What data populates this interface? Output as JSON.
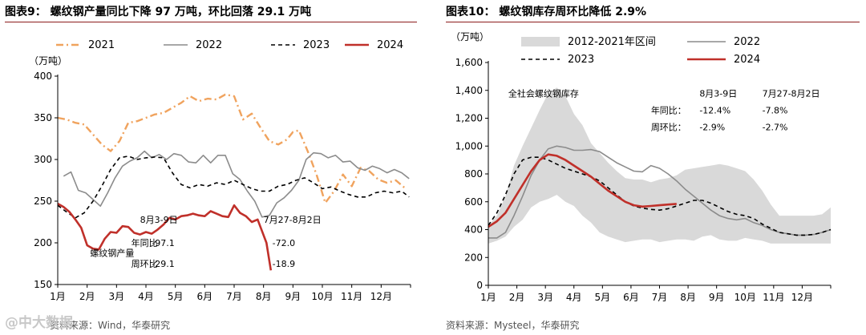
{
  "watermark": "@中大数据",
  "chart_data": [
    {
      "type": "line",
      "title": "图表9：  螺纹钢产量同比下降 97 万吨，环比回落 29.1 万吨",
      "source": "资料来源：Wind，华泰研究",
      "ylabel": "（万吨）",
      "ylim": [
        150,
        400
      ],
      "yticks": [
        "150",
        "200",
        "250",
        "300",
        "350",
        "400"
      ],
      "ytick_values": [
        150,
        200,
        250,
        300,
        350,
        400
      ],
      "xlabels": [
        "1月",
        "2月",
        "3月",
        "4月",
        "5月",
        "6月",
        "7月",
        "8月",
        "9月",
        "10月",
        "11月",
        "12月"
      ],
      "x_domain": [
        1,
        13
      ],
      "series": [
        {
          "name": "2021",
          "style": "dashdot",
          "color": "#f0a35e",
          "x": [
            1,
            1.3,
            1.6,
            1.9,
            2.2,
            2.5,
            2.8,
            3.1,
            3.4,
            3.7,
            4.0,
            4.3,
            4.6,
            4.9,
            5.2,
            5.5,
            5.8,
            6.1,
            6.4,
            6.7,
            7.0,
            7.3,
            7.6,
            7.9,
            8.2,
            8.5,
            8.8,
            9.0,
            9.2,
            9.5,
            9.8,
            10.1,
            10.4,
            10.7,
            11.0,
            11.3,
            11.6,
            11.9,
            12.2,
            12.5,
            12.8
          ],
          "y": [
            350,
            348,
            344,
            342,
            330,
            318,
            310,
            322,
            344,
            346,
            350,
            354,
            356,
            362,
            368,
            376,
            370,
            373,
            372,
            378,
            376,
            348,
            355,
            338,
            322,
            318,
            324,
            333,
            335,
            310,
            282,
            248,
            262,
            282,
            268,
            290,
            286,
            276,
            272,
            275,
            266
          ]
        },
        {
          "name": "2022",
          "style": "solid",
          "color": "#8c8c8c",
          "x": [
            1.2,
            1.45,
            1.7,
            1.95,
            2.2,
            2.45,
            2.7,
            2.95,
            3.2,
            3.45,
            3.7,
            3.95,
            4.2,
            4.45,
            4.7,
            4.95,
            5.2,
            5.45,
            5.7,
            5.95,
            6.2,
            6.45,
            6.7,
            6.95,
            7.2,
            7.45,
            7.7,
            7.95,
            8.2,
            8.45,
            8.7,
            8.95,
            9.2,
            9.45,
            9.7,
            9.95,
            10.2,
            10.45,
            10.7,
            10.95,
            11.2,
            11.45,
            11.7,
            11.95,
            12.2,
            12.45,
            12.7,
            12.95
          ],
          "y": [
            280,
            285,
            263,
            260,
            252,
            244,
            260,
            278,
            292,
            298,
            302,
            310,
            302,
            306,
            300,
            307,
            305,
            297,
            296,
            305,
            296,
            305,
            305,
            283,
            276,
            262,
            250,
            231,
            233,
            248,
            254,
            263,
            275,
            300,
            308,
            307,
            302,
            305,
            297,
            298,
            290,
            287,
            292,
            289,
            284,
            288,
            284,
            277
          ]
        },
        {
          "name": "2023",
          "style": "dashed",
          "color": "#000000",
          "x": [
            1.0,
            1.3,
            1.6,
            1.9,
            2.2,
            2.5,
            2.8,
            3.1,
            3.4,
            3.7,
            4.0,
            4.3,
            4.6,
            4.9,
            5.2,
            5.5,
            5.8,
            6.1,
            6.4,
            6.7,
            7.0,
            7.3,
            7.6,
            7.9,
            8.2,
            8.5,
            8.8,
            9.1,
            9.4,
            9.7,
            10.0,
            10.3,
            10.6,
            10.9,
            11.2,
            11.5,
            11.8,
            12.1,
            12.4,
            12.7,
            12.95
          ],
          "y": [
            245,
            237,
            230,
            236,
            250,
            268,
            288,
            302,
            304,
            300,
            302,
            303,
            302,
            284,
            270,
            266,
            270,
            268,
            272,
            270,
            275,
            270,
            265,
            262,
            262,
            268,
            270,
            275,
            278,
            272,
            265,
            267,
            262,
            258,
            255,
            255,
            260,
            262,
            260,
            262,
            255
          ]
        },
        {
          "name": "2024",
          "style": "solid",
          "color": "#c0302a",
          "x": [
            1.0,
            1.2,
            1.4,
            1.6,
            1.8,
            2.0,
            2.2,
            2.4,
            2.6,
            2.8,
            3.0,
            3.2,
            3.4,
            3.6,
            3.8,
            4.0,
            4.2,
            4.4,
            4.6,
            4.8,
            5.0,
            5.2,
            5.4,
            5.6,
            5.8,
            6.0,
            6.2,
            6.4,
            6.6,
            6.8,
            7.0,
            7.2,
            7.4,
            7.6,
            7.8,
            7.95,
            8.1,
            8.25
          ],
          "y": [
            247,
            243,
            237,
            228,
            218,
            197,
            193,
            192,
            205,
            213,
            212,
            220,
            219,
            212,
            210,
            213,
            211,
            216,
            222,
            230,
            228,
            232,
            233,
            235,
            233,
            232,
            238,
            235,
            232,
            231,
            245,
            236,
            232,
            225,
            228,
            214,
            200,
            167
          ]
        }
      ],
      "annotations": [
        {
          "text": "8月3-9日",
          "x": 3.8,
          "y": 224
        },
        {
          "text": "7月27-8月2日",
          "x": 8.0,
          "y": 224
        },
        {
          "text": "年同比",
          "x": 3.5,
          "y": 196
        },
        {
          "text": "-97.1",
          "x": 4.2,
          "y": 196
        },
        {
          "text": "-72.0",
          "x": 8.3,
          "y": 196
        },
        {
          "text": "螺纹钢产量",
          "x": 2.1,
          "y": 184
        },
        {
          "text": "周环比",
          "x": 3.5,
          "y": 171
        },
        {
          "text": "-29.1",
          "x": 4.2,
          "y": 171
        },
        {
          "text": "-18.9",
          "x": 8.3,
          "y": 171
        }
      ]
    },
    {
      "type": "line",
      "title": "图表10：  螺纹钢库存周环比降低 2.9%",
      "source": "资料来源：Mysteel，华泰研究",
      "ylabel": "（万吨）",
      "ylim": [
        0,
        1600
      ],
      "yticks": [
        "0",
        "200",
        "400",
        "600",
        "800",
        "1,000",
        "1,200",
        "1,400",
        "1,600"
      ],
      "ytick_values": [
        0,
        200,
        400,
        600,
        800,
        1000,
        1200,
        1400,
        1600
      ],
      "xlabels": [
        "1月",
        "2月",
        "3月",
        "4月",
        "5月",
        "6月",
        "7月",
        "8月",
        "9月",
        "10月",
        "11月",
        "12月"
      ],
      "x_domain": [
        1,
        13
      ],
      "band": {
        "name": "2012-2021年区间",
        "color": "#d9d9d9",
        "x": [
          1.0,
          1.3,
          1.6,
          1.9,
          2.2,
          2.5,
          2.8,
          3.1,
          3.4,
          3.7,
          4.0,
          4.3,
          4.6,
          4.9,
          5.2,
          5.5,
          5.8,
          6.1,
          6.4,
          6.7,
          7.0,
          7.3,
          7.6,
          7.9,
          8.2,
          8.5,
          8.8,
          9.1,
          9.4,
          9.7,
          10.0,
          10.3,
          10.6,
          10.9,
          11.2,
          11.5,
          11.8,
          12.1,
          12.4,
          12.7,
          13.0
        ],
        "upper": [
          430,
          500,
          640,
          860,
          1000,
          1130,
          1260,
          1380,
          1420,
          1360,
          1230,
          1150,
          1020,
          950,
          880,
          820,
          770,
          760,
          760,
          740,
          760,
          770,
          790,
          830,
          840,
          850,
          860,
          870,
          860,
          840,
          820,
          760,
          680,
          580,
          500,
          500,
          500,
          500,
          500,
          510,
          560
        ],
        "lower": [
          300,
          320,
          350,
          420,
          470,
          560,
          600,
          620,
          650,
          600,
          570,
          500,
          450,
          380,
          350,
          330,
          310,
          320,
          330,
          330,
          310,
          320,
          330,
          330,
          320,
          350,
          360,
          330,
          320,
          320,
          340,
          330,
          320,
          300,
          300,
          300,
          300,
          300,
          300,
          300,
          300
        ]
      },
      "series": [
        {
          "name": "2022",
          "style": "solid",
          "color": "#8c8c8c",
          "x": [
            1.0,
            1.3,
            1.6,
            1.9,
            2.2,
            2.5,
            2.8,
            3.1,
            3.4,
            3.7,
            4.0,
            4.3,
            4.6,
            4.9,
            5.2,
            5.5,
            5.8,
            6.1,
            6.4,
            6.7,
            7.0,
            7.3,
            7.6,
            7.9,
            8.2,
            8.5,
            8.8,
            9.1,
            9.4,
            9.7,
            10.0,
            10.3,
            10.6,
            10.9,
            11.2,
            11.5,
            11.8,
            12.1,
            12.4,
            12.7,
            13.0
          ],
          "y": [
            340,
            340,
            380,
            500,
            640,
            790,
            900,
            980,
            1000,
            990,
            970,
            970,
            975,
            960,
            920,
            880,
            850,
            820,
            815,
            860,
            840,
            800,
            750,
            690,
            640,
            590,
            540,
            500,
            480,
            470,
            480,
            450,
            430,
            400,
            380,
            370,
            360,
            360,
            365,
            380,
            400
          ]
        },
        {
          "name": "2023",
          "style": "dashed",
          "color": "#000000",
          "x": [
            1.0,
            1.3,
            1.6,
            1.9,
            2.2,
            2.5,
            2.8,
            3.1,
            3.4,
            3.7,
            4.0,
            4.3,
            4.6,
            4.9,
            5.2,
            5.5,
            5.8,
            6.1,
            6.4,
            6.7,
            7.0,
            7.3,
            7.6,
            7.9,
            8.2,
            8.5,
            8.8,
            9.1,
            9.4,
            9.7,
            10.0,
            10.3,
            10.6,
            10.9,
            11.2,
            11.5,
            11.8,
            12.1,
            12.4,
            12.7,
            13.0
          ],
          "y": [
            430,
            520,
            650,
            800,
            900,
            920,
            920,
            900,
            870,
            840,
            820,
            800,
            780,
            750,
            700,
            650,
            600,
            570,
            555,
            545,
            540,
            550,
            570,
            590,
            610,
            610,
            590,
            560,
            530,
            510,
            500,
            480,
            440,
            410,
            380,
            370,
            360,
            360,
            365,
            380,
            400
          ]
        },
        {
          "name": "2024",
          "style": "solid",
          "color": "#c0302a",
          "x": [
            1.0,
            1.3,
            1.6,
            1.9,
            2.2,
            2.5,
            2.8,
            3.1,
            3.4,
            3.7,
            4.0,
            4.3,
            4.6,
            4.9,
            5.2,
            5.5,
            5.8,
            6.1,
            6.4,
            6.7,
            7.0,
            7.3,
            7.6
          ],
          "y": [
            420,
            460,
            520,
            620,
            720,
            820,
            900,
            940,
            930,
            900,
            860,
            820,
            780,
            730,
            680,
            640,
            600,
            575,
            565,
            570,
            575,
            580,
            585
          ]
        }
      ],
      "annotations": [
        {
          "text": "全社会螺纹钢库存",
          "x": 1.7,
          "y": 1355
        },
        {
          "text": "8月3-9日",
          "x": 8.4,
          "y": 1355
        },
        {
          "text": "7月27-8月2日",
          "x": 10.6,
          "y": 1355
        },
        {
          "text": "年同比：",
          "x": 6.7,
          "y": 1235
        },
        {
          "text": "-12.4%",
          "x": 8.4,
          "y": 1235
        },
        {
          "text": "-7.8%",
          "x": 10.6,
          "y": 1235
        },
        {
          "text": "周环比：",
          "x": 6.7,
          "y": 1115
        },
        {
          "text": "-2.9%",
          "x": 8.4,
          "y": 1115
        },
        {
          "text": "-2.7%",
          "x": 10.6,
          "y": 1115
        }
      ]
    }
  ]
}
